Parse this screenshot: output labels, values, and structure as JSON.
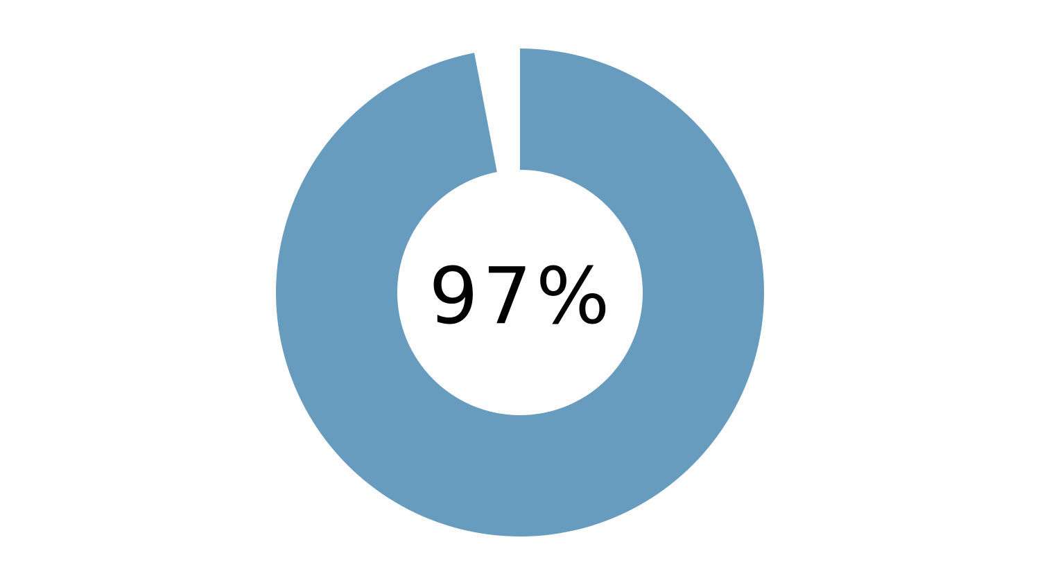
{
  "chart_data": {
    "type": "pie",
    "variant": "donut",
    "value_percent": 97,
    "remainder_percent": 3,
    "center_label": "97%",
    "fill_color": "#679cbe",
    "remainder_color": "#ffffff",
    "legend": "none"
  }
}
